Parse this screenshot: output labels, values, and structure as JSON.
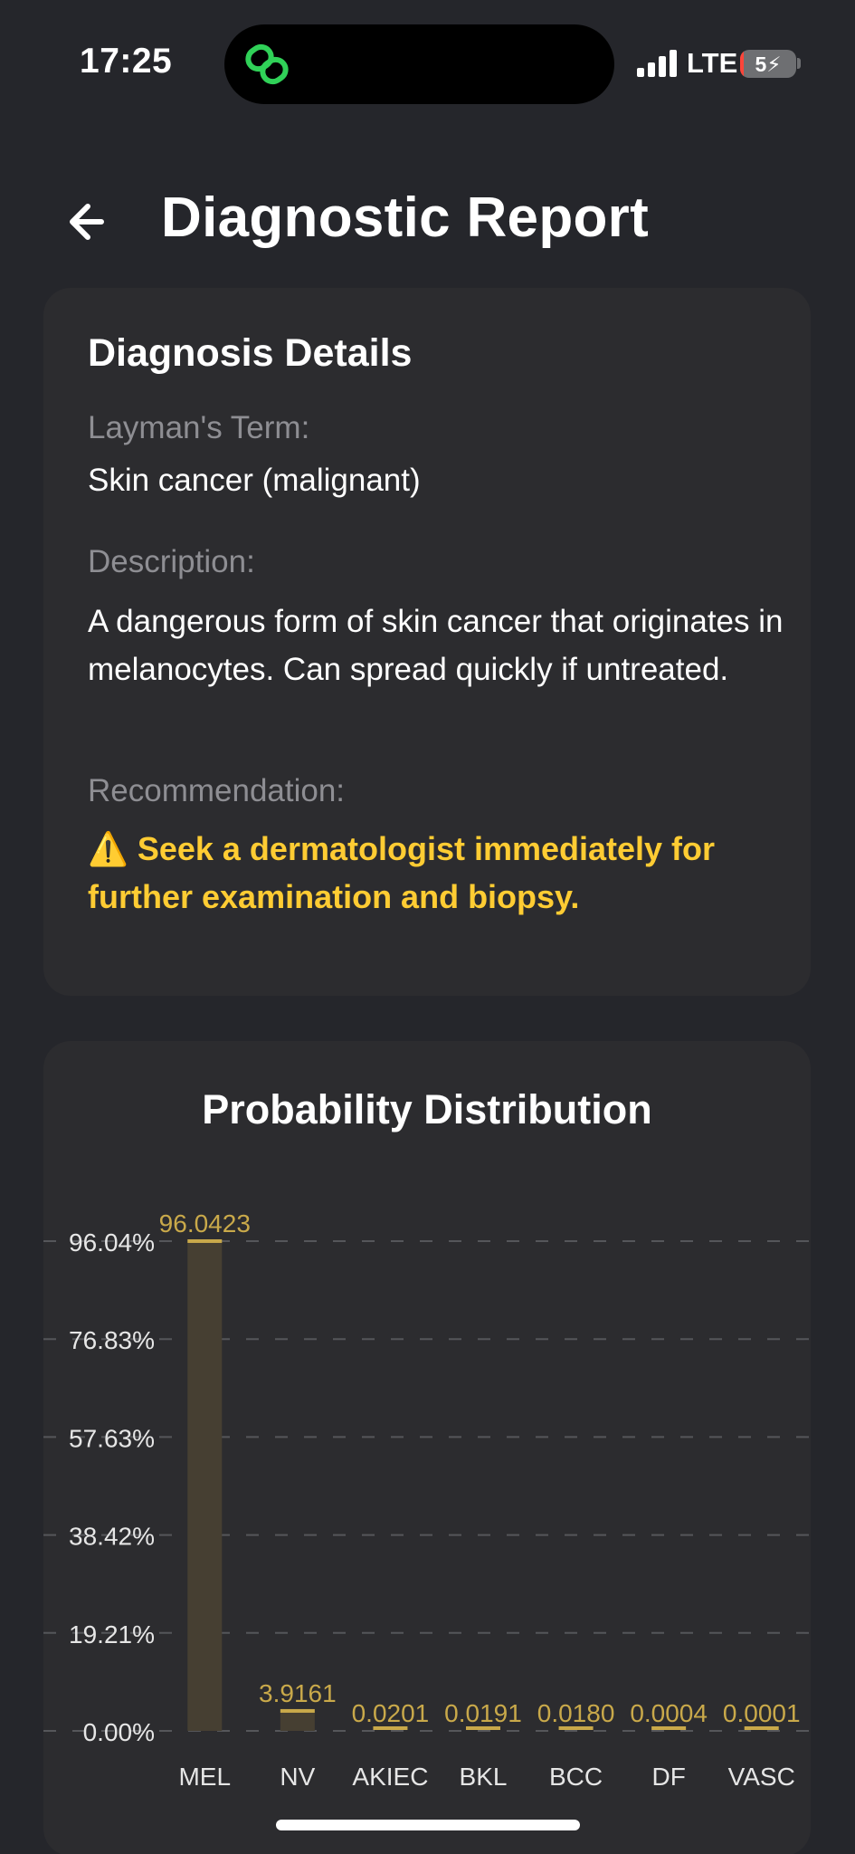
{
  "status_bar": {
    "time": "17:25",
    "network": "LTE",
    "battery": "5"
  },
  "header": {
    "title": "Diagnostic Report",
    "back_icon": "arrow-left-icon"
  },
  "details": {
    "heading": "Diagnosis Details",
    "layman_label": "Layman's Term:",
    "layman_value": "Skin cancer (malignant)",
    "description_label": "Description:",
    "description_value": "A dangerous form of skin cancer that originates in melanocytes. Can spread quickly if untreated.",
    "recommendation_label": "Recommendation:",
    "recommendation_value": "⚠️ Seek a dermatologist immediately for further examination and biopsy."
  },
  "chart_data": {
    "type": "bar",
    "title": "Probability Distribution",
    "categories": [
      "MEL",
      "NV",
      "AKIEC",
      "BKL",
      "BCC",
      "DF",
      "VASC"
    ],
    "values": [
      96.0423,
      3.9161,
      0.0201,
      0.0191,
      0.018,
      0.0004,
      0.0001
    ],
    "data_labels": [
      "96.0423",
      "3.9161",
      "0.0201",
      "0.0191",
      "0.0180",
      "0.0004",
      "0.0001"
    ],
    "y_ticks": [
      "0.00%",
      "19.21%",
      "38.42%",
      "57.63%",
      "76.83%",
      "96.04%"
    ],
    "ylim": [
      0,
      96.04
    ],
    "grid": true,
    "colors": {
      "bar_fill": "#463f32",
      "bar_top": "#c9a94a",
      "label": "#c9a94a",
      "grid": "#55565a",
      "axis_text": "#e6e6e6"
    }
  },
  "colors": {
    "background": "#25262b",
    "card": "#2c2c2f",
    "muted_text": "#8e8e93",
    "warning": "#ffcc33",
    "island_icon": "#30d158"
  }
}
